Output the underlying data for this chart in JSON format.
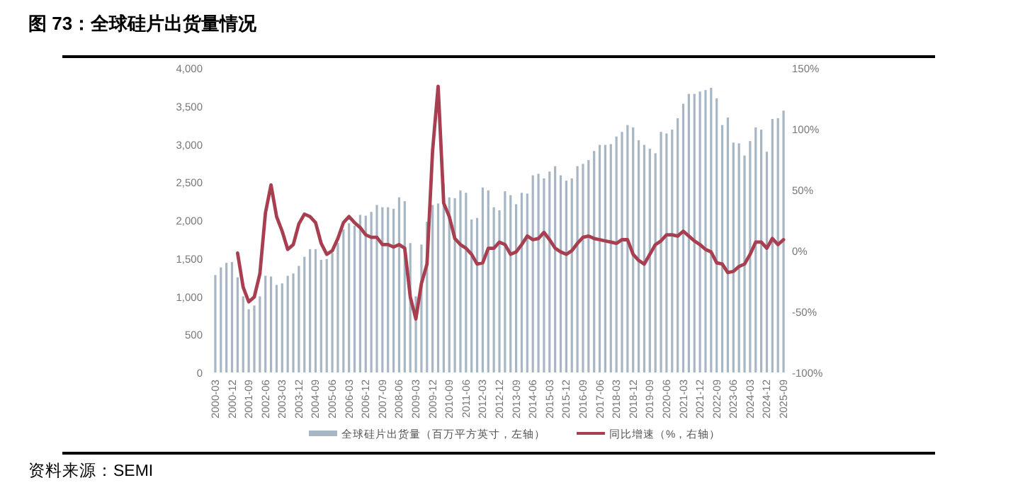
{
  "chart_data": {
    "type": "bar",
    "title": "图 73：全球硅片出货量情况",
    "annotations": [
      "资料来源：SEMI"
    ],
    "categories": [
      "2000-03",
      null,
      null,
      "2000-12",
      null,
      null,
      "2001-09",
      null,
      null,
      "2002-06",
      null,
      null,
      "2003-03",
      null,
      null,
      "2003-12",
      null,
      null,
      "2004-09",
      null,
      null,
      "2005-06",
      null,
      null,
      "2006-03",
      null,
      null,
      "2006-12",
      null,
      null,
      "2007-09",
      null,
      null,
      "2008-06",
      null,
      null,
      "2009-03",
      null,
      null,
      "2009-12",
      null,
      null,
      "2010-09",
      null,
      null,
      "2011-06",
      null,
      null,
      "2012-03",
      null,
      null,
      "2012-12",
      null,
      null,
      "2013-09",
      null,
      null,
      "2014-06",
      null,
      null,
      "2015-03",
      null,
      null,
      "2015-12",
      null,
      null,
      "2016-09",
      null,
      null,
      "2017-06",
      null,
      null,
      "2018-03",
      null,
      null,
      "2018-12",
      null,
      null,
      "2019-09",
      null,
      null,
      "2020-06",
      null,
      null,
      "2021-03",
      null,
      null,
      "2021-12",
      null,
      null,
      "2022-09",
      null,
      null,
      "2023-06",
      null,
      null,
      "2024-03",
      null,
      null,
      "2024-12",
      null,
      null,
      "2025-09"
    ],
    "series": [
      {
        "name": "全球硅片出货量（百万平方英寸，左轴）",
        "color": "#a7b6c4",
        "values": [
          1280,
          1380,
          1440,
          1450,
          1250,
          1000,
          830,
          880,
          1000,
          1270,
          1260,
          1150,
          1170,
          1270,
          1300,
          1400,
          1520,
          1620,
          1620,
          1480,
          1490,
          1570,
          1700,
          1880,
          1960,
          1930,
          2070,
          2060,
          2110,
          2200,
          2170,
          2170,
          2150,
          2300,
          2250,
          1700,
          1000,
          1680,
          1980,
          2200,
          2220,
          2480,
          2300,
          2290,
          2390,
          2360,
          2010,
          2030,
          2430,
          2390,
          2170,
          2130,
          2380,
          2330,
          2210,
          2360,
          2350,
          2590,
          2610,
          2550,
          2640,
          2710,
          2590,
          2520,
          2550,
          2710,
          2740,
          2790,
          2910,
          2990,
          2990,
          3000,
          3100,
          3160,
          3250,
          3220,
          3050,
          2990,
          2940,
          2880,
          3160,
          3140,
          3190,
          3340,
          3530,
          3660,
          3660,
          3690,
          3710,
          3740,
          3600,
          3250,
          3350,
          3020,
          3010,
          2850,
          3040,
          3220,
          3190,
          2900,
          3330,
          3340,
          3440
        ]
      },
      {
        "name": "同比增速（%，右轴）",
        "type": "line",
        "axis": "y2",
        "color": "#a83f50",
        "values": [
          null,
          null,
          null,
          null,
          -2,
          -30,
          -42,
          -38,
          -19,
          31,
          54,
          28,
          16,
          1,
          5,
          22,
          30,
          28,
          23,
          6,
          -3,
          0,
          10,
          23,
          28,
          23,
          19,
          13,
          11,
          11,
          5,
          5,
          3,
          5,
          2,
          -38,
          -56,
          -27,
          -11,
          82,
          135,
          39,
          28,
          10,
          5,
          2,
          -3,
          -11,
          -10,
          2,
          2,
          7,
          5,
          -3,
          -1,
          5,
          12,
          9,
          10,
          15,
          9,
          2,
          -1,
          -3,
          0,
          6,
          11,
          12,
          10,
          9,
          8,
          7,
          6,
          9,
          9,
          -3,
          -8,
          -11,
          -3,
          5,
          8,
          13,
          13,
          12,
          16,
          12,
          8,
          5,
          1,
          -1,
          -10,
          -11,
          -18,
          -17,
          -13,
          -11,
          -3,
          7,
          7,
          2,
          10,
          5,
          9
        ]
      }
    ],
    "ylim": [
      0,
      4000
    ],
    "yticks": [
      0,
      500,
      {
        "value": 1000,
        "label": "1,000"
      },
      {
        "value": 1500,
        "label": "1,500"
      },
      {
        "value": 2000,
        "label": "2,000"
      },
      {
        "value": 2500,
        "label": "2,500"
      },
      {
        "value": 3000,
        "label": "3,000"
      },
      {
        "value": 3500,
        "label": "3,500"
      },
      {
        "value": 4000,
        "label": "4,000"
      }
    ],
    "y2lim": [
      -100,
      150
    ],
    "y2ticks": [
      {
        "value": -100,
        "label": "-100%"
      },
      {
        "value": -50,
        "label": "-50%"
      },
      {
        "value": 0,
        "label": "0%"
      },
      {
        "value": 50,
        "label": "50%"
      },
      {
        "value": 100,
        "label": "100%"
      },
      {
        "value": 150,
        "label": "150%"
      }
    ],
    "legend": "bottom"
  }
}
